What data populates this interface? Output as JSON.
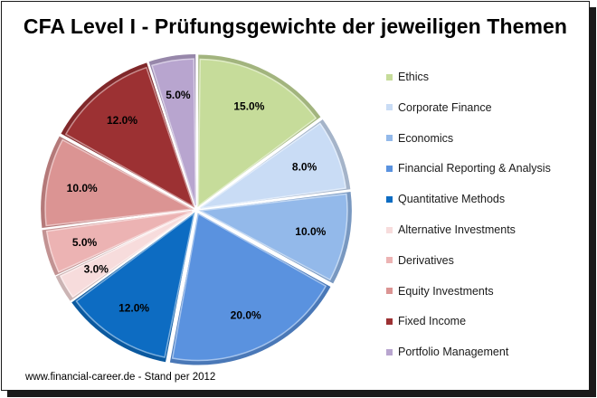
{
  "title": "CFA Level I - Prüfungsgewichte der jeweiligen Themen",
  "footer": "www.financial-career.de - Stand per 2012",
  "chart_data": {
    "type": "pie",
    "title": "CFA Level I - Prüfungsgewichte der jeweiligen Themen",
    "legend_position": "right",
    "slices": [
      {
        "name": "Ethics",
        "value": 15.0,
        "label": "15.0%",
        "color": "#c6dc9a"
      },
      {
        "name": "Corporate Finance",
        "value": 8.0,
        "label": "8.0%",
        "color": "#c9dcf5"
      },
      {
        "name": "Economics",
        "value": 10.0,
        "label": "10.0%",
        "color": "#93b9ea"
      },
      {
        "name": "Financial Reporting & Analysis",
        "value": 20.0,
        "label": "20.0%",
        "color": "#5a92df"
      },
      {
        "name": "Quantitative Methods",
        "value": 12.0,
        "label": "12.0%",
        "color": "#0d6cc2"
      },
      {
        "name": "Alternative Investments",
        "value": 3.0,
        "label": "3.0%",
        "color": "#f7dcdc"
      },
      {
        "name": "Derivatives",
        "value": 5.0,
        "label": "5.0%",
        "color": "#ecb3b3"
      },
      {
        "name": "Equity Investments",
        "value": 10.0,
        "label": "10.0%",
        "color": "#db9493"
      },
      {
        "name": "Fixed Income",
        "value": 12.0,
        "label": "12.0%",
        "color": "#9c3133"
      },
      {
        "name": "Portfolio Management",
        "value": 5.0,
        "label": "5.0%",
        "color": "#b8a5cf"
      }
    ]
  }
}
